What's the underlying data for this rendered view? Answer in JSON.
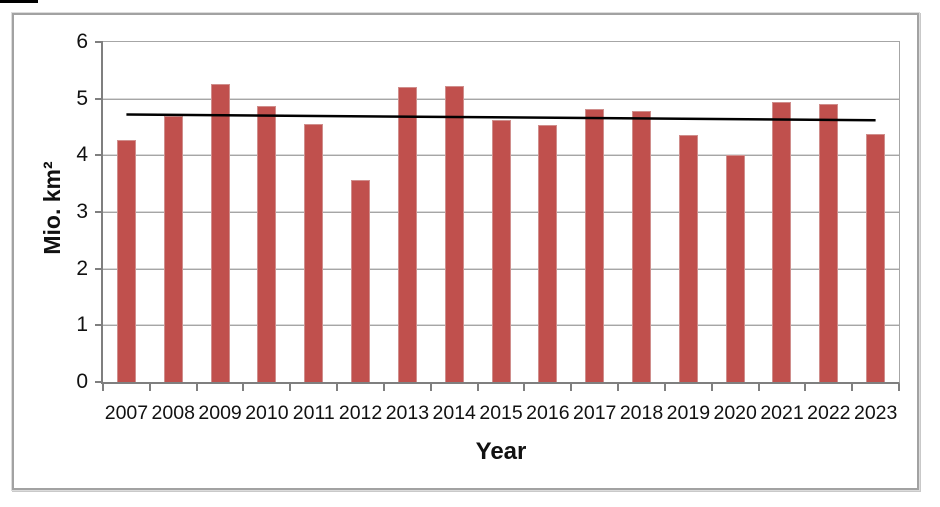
{
  "chart_data": {
    "type": "bar",
    "title": "",
    "xlabel": "Year",
    "ylabel": "Mio. km²",
    "categories": [
      "2007",
      "2008",
      "2009",
      "2010",
      "2011",
      "2012",
      "2013",
      "2014",
      "2015",
      "2016",
      "2017",
      "2018",
      "2019",
      "2020",
      "2021",
      "2022",
      "2023"
    ],
    "values": [
      4.27,
      4.69,
      5.26,
      4.87,
      4.56,
      3.57,
      5.21,
      5.22,
      4.62,
      4.53,
      4.82,
      4.78,
      4.36,
      4.0,
      4.95,
      4.9,
      4.38
    ],
    "ylim": [
      0,
      6
    ],
    "yticks": [
      0,
      1,
      2,
      3,
      4,
      5,
      6
    ],
    "grid": "horizontal",
    "legend": "none",
    "trendline": {
      "type": "linear",
      "start_value": 4.72,
      "end_value": 4.62
    },
    "colors": {
      "bar_fill": "#C0504D",
      "bar_edge": "#D08E8C",
      "trend_line": "#000000",
      "gridline": "#A6A6A6",
      "axis_line": "#7F7F7F",
      "frame_border": "#A2A2A2",
      "text": "#111111",
      "background": "#FFFFFF"
    }
  }
}
